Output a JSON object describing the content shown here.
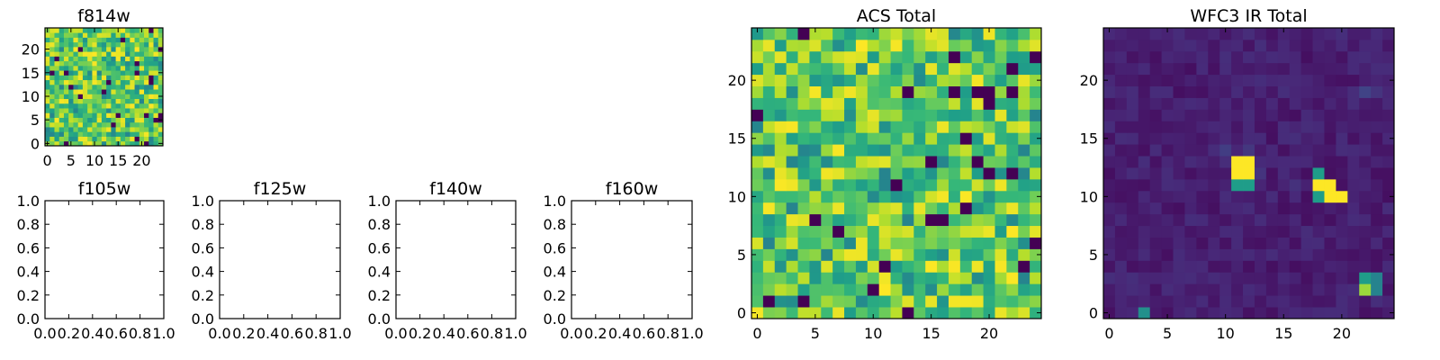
{
  "chart_data": [
    {
      "type": "heatmap",
      "title": "f814w",
      "xticks": [
        "0",
        "5",
        "10",
        "15",
        "20"
      ],
      "yticks": [
        "0",
        "5",
        "10",
        "15",
        "20"
      ],
      "xlim": [
        -0.5,
        24.5
      ],
      "ylim": [
        -0.5,
        24.5
      ],
      "grid": false,
      "colormap": "viridis",
      "grid_size": 25,
      "texture": "random noise, mostly green-yellow with scattered dark pixels"
    },
    {
      "type": "heatmap",
      "title": "f105w",
      "xticks": [
        "0.0",
        "0.2",
        "0.4",
        "0.6",
        "0.8",
        "1.0"
      ],
      "yticks": [
        "0.0",
        "0.2",
        "0.4",
        "0.6",
        "0.8",
        "1.0"
      ],
      "xlim": [
        0,
        1
      ],
      "ylim": [
        0,
        1
      ],
      "empty": true
    },
    {
      "type": "heatmap",
      "title": "f125w",
      "xticks": [
        "0.0",
        "0.2",
        "0.4",
        "0.6",
        "0.8",
        "1.0"
      ],
      "yticks": [
        "0.0",
        "0.2",
        "0.4",
        "0.6",
        "0.8",
        "1.0"
      ],
      "xlim": [
        0,
        1
      ],
      "ylim": [
        0,
        1
      ],
      "empty": true
    },
    {
      "type": "heatmap",
      "title": "f140w",
      "xticks": [
        "0.0",
        "0.2",
        "0.4",
        "0.6",
        "0.8",
        "1.0"
      ],
      "yticks": [
        "0.0",
        "0.2",
        "0.4",
        "0.6",
        "0.8",
        "1.0"
      ],
      "xlim": [
        0,
        1
      ],
      "ylim": [
        0,
        1
      ],
      "empty": true
    },
    {
      "type": "heatmap",
      "title": "f160w",
      "xticks": [
        "0.0",
        "0.2",
        "0.4",
        "0.6",
        "0.8",
        "1.0"
      ],
      "yticks": [
        "0.0",
        "0.2",
        "0.4",
        "0.6",
        "0.8",
        "1.0"
      ],
      "xlim": [
        0,
        1
      ],
      "ylim": [
        0,
        1
      ],
      "empty": true
    },
    {
      "type": "heatmap",
      "title": "ACS Total",
      "xticks": [
        "0",
        "5",
        "10",
        "15",
        "20"
      ],
      "yticks": [
        "0",
        "5",
        "10",
        "15",
        "20"
      ],
      "xlim": [
        -0.5,
        24.5
      ],
      "ylim": [
        -0.5,
        24.5
      ],
      "grid": false,
      "colormap": "viridis",
      "grid_size": 25,
      "texture": "random noise, mostly green-yellow with scattered dark pixels"
    },
    {
      "type": "heatmap",
      "title": "WFC3 IR Total",
      "xticks": [
        "0",
        "5",
        "10",
        "15",
        "20"
      ],
      "yticks": [
        "0",
        "5",
        "10",
        "15",
        "20"
      ],
      "xlim": [
        -0.5,
        24.5
      ],
      "ylim": [
        -0.5,
        24.5
      ],
      "grid": false,
      "colormap": "viridis",
      "grid_size": 25,
      "background_level": 0.04,
      "bright_pixels": [
        {
          "x": 11,
          "y": 13,
          "v": 1.0
        },
        {
          "x": 12,
          "y": 13,
          "v": 1.0
        },
        {
          "x": 11,
          "y": 12,
          "v": 1.0
        },
        {
          "x": 12,
          "y": 12,
          "v": 1.0
        },
        {
          "x": 11,
          "y": 11,
          "v": 0.55
        },
        {
          "x": 12,
          "y": 11,
          "v": 0.55
        },
        {
          "x": 18,
          "y": 12,
          "v": 0.55
        },
        {
          "x": 18,
          "y": 11,
          "v": 1.0
        },
        {
          "x": 19,
          "y": 11,
          "v": 1.0
        },
        {
          "x": 18,
          "y": 10,
          "v": 0.55
        },
        {
          "x": 19,
          "y": 10,
          "v": 1.0
        },
        {
          "x": 20,
          "y": 10,
          "v": 1.0
        },
        {
          "x": 22,
          "y": 3,
          "v": 0.55
        },
        {
          "x": 23,
          "y": 3,
          "v": 0.45
        },
        {
          "x": 22,
          "y": 2,
          "v": 0.85
        },
        {
          "x": 23,
          "y": 2,
          "v": 0.45
        },
        {
          "x": 3,
          "y": 0,
          "v": 0.5
        },
        {
          "x": 10,
          "y": 14,
          "v": 0.18
        },
        {
          "x": 13,
          "y": 12,
          "v": 0.15
        },
        {
          "x": 16,
          "y": 11,
          "v": 0.14
        },
        {
          "x": 22,
          "y": 19,
          "v": 0.2
        },
        {
          "x": 23,
          "y": 19,
          "v": 0.15
        },
        {
          "x": 12,
          "y": 14,
          "v": 0.16
        }
      ]
    }
  ]
}
